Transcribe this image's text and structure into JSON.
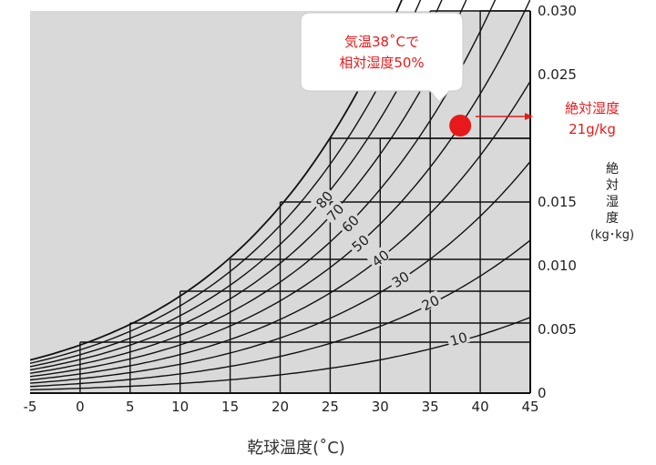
{
  "chart_data": {
    "type": "line",
    "xlabel": "乾球温度(˚C)",
    "ylabel": [
      "絶",
      "対",
      "湿",
      "度"
    ],
    "yunit": "(kg･kg)",
    "xlim": [
      -5,
      45
    ],
    "ylim": [
      0,
      0.03
    ],
    "x_ticks": [
      -5,
      0,
      5,
      10,
      15,
      20,
      25,
      30,
      35,
      40,
      45
    ],
    "y_ticks": [
      {
        "v": 0,
        "label": "0"
      },
      {
        "v": 0.005,
        "label": "0.005"
      },
      {
        "v": 0.01,
        "label": "0.010"
      },
      {
        "v": 0.015,
        "label": "0.015"
      },
      {
        "v": 0.025,
        "label": "0.025"
      },
      {
        "v": 0.03,
        "label": "0.030"
      }
    ],
    "rh_curves": [
      10,
      20,
      30,
      40,
      50,
      60,
      70,
      80,
      90,
      100
    ],
    "rh_labels": [
      {
        "rh": 10,
        "label": "10"
      },
      {
        "rh": 20,
        "label": "20"
      },
      {
        "rh": 30,
        "label": "30"
      },
      {
        "rh": 40,
        "label": "40"
      },
      {
        "rh": 50,
        "label": "50"
      },
      {
        "rh": 60,
        "label": "60"
      },
      {
        "rh": 70,
        "label": "70"
      },
      {
        "rh": 80,
        "label": "80"
      }
    ],
    "grid_steps": [
      {
        "x": 0,
        "y": 0.004
      },
      {
        "x": 5,
        "y": 0.0055
      },
      {
        "x": 10,
        "y": 0.008
      },
      {
        "x": 15,
        "y": 0.0105
      },
      {
        "x": 20,
        "y": 0.015
      },
      {
        "x": 25,
        "y": 0.02
      },
      {
        "x": 30,
        "y": 0.02
      },
      {
        "x": 35,
        "y": 0.03
      },
      {
        "x": 40,
        "y": 0.03
      }
    ],
    "highlight_point": {
      "x": 38,
      "y": 0.021
    },
    "colors": {
      "plot_bg": "#d9d9d9",
      "line": "#111111",
      "accent": "#e8191b"
    }
  },
  "callout": {
    "line1": "気温38˚Cで",
    "line2": "相対湿度50%"
  },
  "abs_label": {
    "line1": "絶対湿度",
    "line2": "21g/kg"
  }
}
